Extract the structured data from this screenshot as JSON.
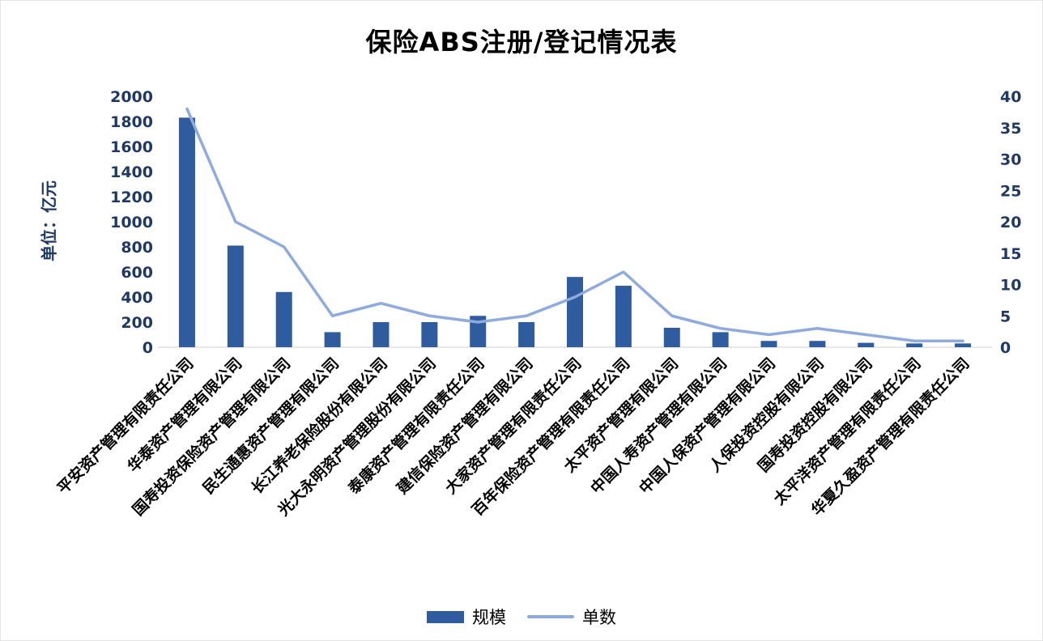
{
  "chart_data": {
    "type": "bar+line",
    "title": "保险ABS注册/登记情况表",
    "categories": [
      "平安资产管理有限责任公司",
      "华泰资产管理有限公司",
      "国寿投资保险资产管理有限公司",
      "民生通惠资产管理有限公司",
      "长江养老保险股份有限公司",
      "光大永明资产管理股份有限公司",
      "泰康资产管理有限责任公司",
      "建信保险资产管理有限公司",
      "大家资产管理有限责任公司",
      "百年保险资产管理有限责任公司",
      "太平资产管理有限公司",
      "中国人寿资产管理有限公司",
      "中国人保资产管理有限公司",
      "人保投资控股有限公司",
      "国寿投资控股有限公司",
      "太平洋资产管理有限责任公司",
      "华夏久盈资产管理有限责任公司"
    ],
    "series": [
      {
        "name": "规模",
        "type": "bar",
        "axis": "left",
        "color": "#2e5c9e",
        "values": [
          1830,
          810,
          440,
          120,
          200,
          200,
          250,
          200,
          560,
          490,
          155,
          120,
          50,
          50,
          35,
          30,
          30
        ]
      },
      {
        "name": "单数",
        "type": "line",
        "axis": "right",
        "color": "#8faadc",
        "values": [
          38,
          20,
          16,
          5,
          7,
          5,
          4,
          5,
          8,
          12,
          5,
          3,
          2,
          3,
          2,
          1,
          1
        ]
      }
    ],
    "left_axis": {
      "label": "单位：亿元",
      "min": 0,
      "max": 2000,
      "tick_step": 200,
      "ticks": [
        0,
        200,
        400,
        600,
        800,
        1000,
        1200,
        1400,
        1600,
        1800,
        2000
      ]
    },
    "right_axis": {
      "min": 0,
      "max": 40,
      "tick_step": 5,
      "ticks": [
        0,
        5,
        10,
        15,
        20,
        25,
        30,
        35,
        40
      ]
    },
    "grid": false,
    "legend_position": "bottom"
  }
}
